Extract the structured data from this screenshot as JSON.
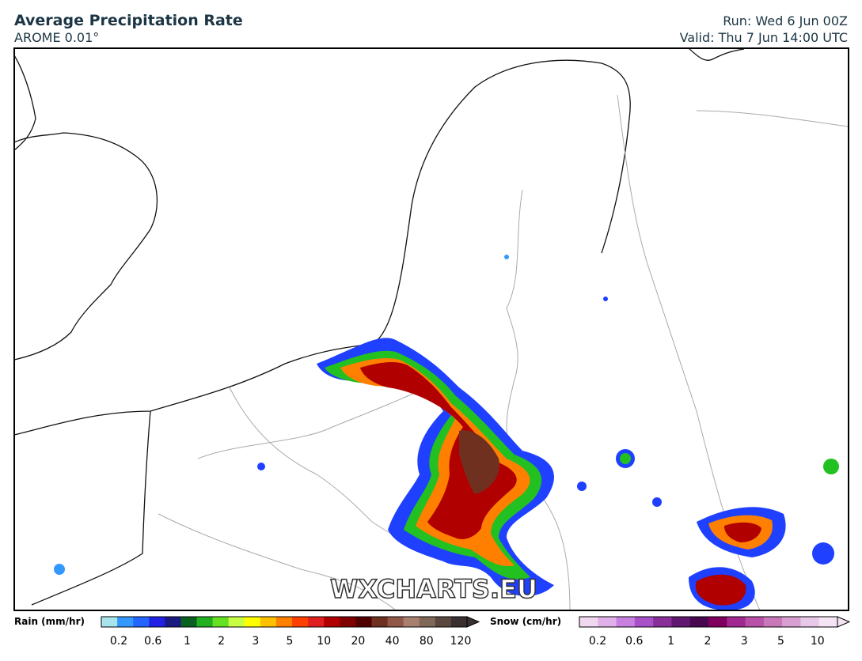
{
  "header": {
    "title": "Average Precipitation Rate",
    "subtitle": "AROME 0.01°",
    "run": "Run: Wed 6 Jun 00Z",
    "valid": "Valid: Thu 7 Jun 14:00 UTC"
  },
  "map": {
    "watermark": "WXCHARTS.EU"
  },
  "legend": {
    "rain": {
      "label": "Rain (mm/hr)",
      "ticks": [
        "0.2",
        "0.6",
        "1",
        "2",
        "3",
        "5",
        "10",
        "20",
        "40",
        "80",
        "120"
      ]
    },
    "snow": {
      "label": "Snow (cm/hr)",
      "ticks": [
        "0.2",
        "0.6",
        "1",
        "2",
        "3",
        "5",
        "10"
      ]
    }
  }
}
